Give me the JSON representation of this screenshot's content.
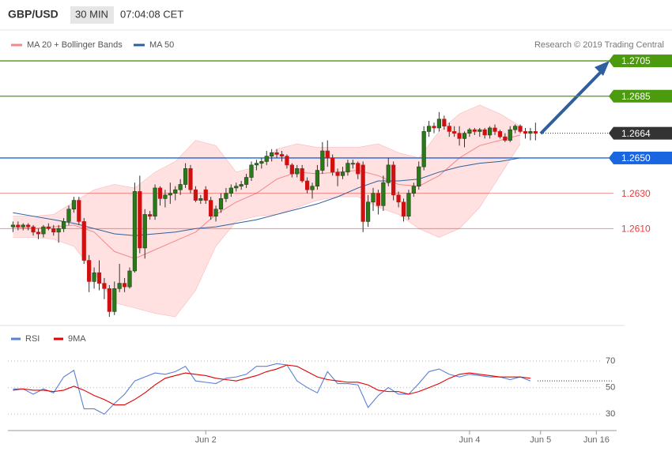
{
  "header": {
    "symbol": "GBP/USD",
    "timeframe": "30 MIN",
    "time": "07:04:08 CET"
  },
  "chart_data": [
    {
      "type": "candlestick",
      "credit": "Research © 2019 Trading Central",
      "open": [
        1.2611,
        1.2612,
        1.2611,
        1.2612,
        1.2611,
        1.2608,
        1.2607,
        1.2611,
        1.261,
        1.2608,
        1.261,
        1.2614,
        1.2621,
        1.2626,
        1.2614,
        1.2592,
        1.258,
        1.2585,
        1.2579,
        1.2576,
        1.2563,
        1.2576,
        1.2579,
        1.2577,
        1.2586,
        1.2631,
        1.2599,
        1.2618,
        1.2617,
        1.2633,
        1.2627,
        1.2629,
        1.263,
        1.2632,
        1.2635,
        1.2644,
        1.2632,
        1.2626,
        1.2632,
        1.2626,
        1.2617,
        1.2621,
        1.2627,
        1.263,
        1.2633,
        1.2634,
        1.2635,
        1.2639,
        1.2646,
        1.2647,
        1.2648,
        1.2651,
        1.2653,
        1.2652,
        1.2651,
        1.2646,
        1.2641,
        1.2644,
        1.2637,
        1.2632,
        1.2634,
        1.2643,
        1.2654,
        1.265,
        1.2642,
        1.264,
        1.2642,
        1.2647,
        1.2647,
        1.2646,
        1.2614,
        1.2625,
        1.263,
        1.2623,
        1.2636,
        1.2646,
        1.2629,
        1.2625,
        1.2617,
        1.263,
        1.2634,
        1.2645,
        1.2665,
        1.2668,
        1.2667,
        1.2672,
        1.2668,
        1.2665,
        1.2664,
        1.2661,
        1.2664,
        1.2666,
        1.2665,
        1.2666,
        1.2663,
        1.2667,
        1.2665,
        1.2662,
        1.266,
        1.2666,
        1.2668,
        1.2665,
        1.2664,
        1.2665
      ],
      "high": [
        1.2614,
        1.2614,
        1.2613,
        1.2613,
        1.2612,
        1.261,
        1.2612,
        1.2613,
        1.2612,
        1.2612,
        1.2616,
        1.2623,
        1.2628,
        1.2628,
        1.2616,
        1.2595,
        1.2588,
        1.2592,
        1.2582,
        1.2578,
        1.258,
        1.259,
        1.2582,
        1.2588,
        1.2636,
        1.264,
        1.2621,
        1.262,
        1.2635,
        1.2634,
        1.2632,
        1.2636,
        1.2634,
        1.2638,
        1.2647,
        1.2646,
        1.2634,
        1.2629,
        1.2634,
        1.2628,
        1.2623,
        1.263,
        1.2633,
        1.2635,
        1.2636,
        1.2637,
        1.2641,
        1.2648,
        1.2649,
        1.265,
        1.2654,
        1.2655,
        1.2655,
        1.2654,
        1.2652,
        1.2647,
        1.2646,
        1.2646,
        1.2639,
        1.2636,
        1.2646,
        1.2659,
        1.266,
        1.2652,
        1.2644,
        1.2645,
        1.2649,
        1.2649,
        1.2648,
        1.2648,
        1.2629,
        1.2633,
        1.2632,
        1.264,
        1.265,
        1.2648,
        1.2631,
        1.2627,
        1.2632,
        1.2636,
        1.2648,
        1.2668,
        1.2671,
        1.267,
        1.2676,
        1.2674,
        1.267,
        1.2668,
        1.2668,
        1.2665,
        1.2667,
        1.2667,
        1.2667,
        1.2667,
        1.2668,
        1.2669,
        1.2666,
        1.2664,
        1.2668,
        1.2669,
        1.2669,
        1.2667,
        1.2667,
        1.267
      ],
      "low": [
        1.2608,
        1.2609,
        1.2609,
        1.2609,
        1.2606,
        1.2604,
        1.2605,
        1.2609,
        1.2606,
        1.2602,
        1.2608,
        1.2612,
        1.2619,
        1.2612,
        1.259,
        1.2574,
        1.2576,
        1.2575,
        1.257,
        1.256,
        1.2561,
        1.2574,
        1.2574,
        1.2576,
        1.2585,
        1.2596,
        1.2593,
        1.2615,
        1.2615,
        1.2623,
        1.2622,
        1.2624,
        1.2626,
        1.2629,
        1.2633,
        1.263,
        1.2625,
        1.2624,
        1.2624,
        1.2615,
        1.2614,
        1.2619,
        1.2625,
        1.2628,
        1.2631,
        1.2632,
        1.2633,
        1.2637,
        1.2643,
        1.2644,
        1.2646,
        1.2648,
        1.265,
        1.2648,
        1.2644,
        1.2639,
        1.2639,
        1.2636,
        1.263,
        1.2627,
        1.2632,
        1.2641,
        1.2645,
        1.264,
        1.2634,
        1.2638,
        1.264,
        1.2644,
        1.2638,
        1.2608,
        1.2611,
        1.262,
        1.2618,
        1.262,
        1.2634,
        1.2626,
        1.2622,
        1.2614,
        1.2615,
        1.2628,
        1.2632,
        1.2643,
        1.2662,
        1.2664,
        1.2665,
        1.2666,
        1.2662,
        1.2662,
        1.2657,
        1.2656,
        1.2662,
        1.2663,
        1.2662,
        1.2661,
        1.2661,
        1.2663,
        1.2661,
        1.2659,
        1.2659,
        1.2664,
        1.2664,
        1.2661,
        1.266,
        1.266
      ],
      "close": [
        1.2612,
        1.2611,
        1.2612,
        1.2611,
        1.2608,
        1.2607,
        1.2611,
        1.261,
        1.2608,
        1.261,
        1.2614,
        1.2621,
        1.2626,
        1.2614,
        1.2592,
        1.258,
        1.2585,
        1.2579,
        1.2576,
        1.2563,
        1.2576,
        1.2579,
        1.2577,
        1.2586,
        1.2631,
        1.2599,
        1.2618,
        1.2617,
        1.2633,
        1.2627,
        1.2629,
        1.263,
        1.2632,
        1.2635,
        1.2644,
        1.2632,
        1.2626,
        1.2627,
        1.2626,
        1.2617,
        1.2621,
        1.2627,
        1.263,
        1.2633,
        1.2634,
        1.2635,
        1.2639,
        1.2646,
        1.2647,
        1.2648,
        1.2651,
        1.2653,
        1.2652,
        1.2651,
        1.2646,
        1.2641,
        1.2644,
        1.2637,
        1.2632,
        1.2634,
        1.2643,
        1.2654,
        1.265,
        1.2642,
        1.264,
        1.2642,
        1.2647,
        1.2647,
        1.2641,
        1.2614,
        1.2625,
        1.263,
        1.2623,
        1.2636,
        1.2646,
        1.2629,
        1.2625,
        1.2617,
        1.263,
        1.2634,
        1.2645,
        1.2665,
        1.2668,
        1.2667,
        1.2672,
        1.2668,
        1.2665,
        1.2664,
        1.2661,
        1.2664,
        1.2666,
        1.2665,
        1.2666,
        1.2663,
        1.2667,
        1.2665,
        1.2662,
        1.266,
        1.2666,
        1.2668,
        1.2665,
        1.2664,
        1.2665,
        1.2664
      ],
      "up_color": "#2a7a1a",
      "down_color": "#d01010",
      "wick_color": "#333333",
      "step": 4,
      "series": [
        {
          "name": "MA 20 + Bollinger Bands",
          "color": "#f08a8a",
          "band_color": "#ffe1e1",
          "values": [
            1.2611,
            1.261,
            1.2611,
            1.2612,
            1.2608,
            1.2597,
            1.2593,
            1.2598,
            1.2603,
            1.2608,
            1.2618,
            1.2625,
            1.263,
            1.2638,
            1.2642,
            1.2641,
            1.2642,
            1.2643,
            1.264,
            1.2635,
            1.2634,
            1.264,
            1.265,
            1.2657,
            1.266,
            1.2663
          ],
          "upper": [
            1.2617,
            1.2617,
            1.2618,
            1.2625,
            1.2632,
            1.2635,
            1.2633,
            1.2642,
            1.2648,
            1.266,
            1.2657,
            1.2642,
            1.2645,
            1.2655,
            1.2658,
            1.2656,
            1.2656,
            1.2656,
            1.2658,
            1.2653,
            1.265,
            1.2665,
            1.2675,
            1.268,
            1.2675,
            1.2668
          ],
          "lower": [
            1.2605,
            1.2605,
            1.2604,
            1.26,
            1.2585,
            1.2568,
            1.2565,
            1.2562,
            1.256,
            1.2575,
            1.26,
            1.2614,
            1.2617,
            1.2618,
            1.2622,
            1.2626,
            1.2628,
            1.2628,
            1.2622,
            1.2618,
            1.261,
            1.2605,
            1.261,
            1.2622,
            1.264,
            1.2658
          ]
        },
        {
          "name": "MA 50",
          "color": "#2f5f9e",
          "values": [
            1.2619,
            1.2617,
            1.2615,
            1.2613,
            1.261,
            1.2607,
            1.2606,
            1.2607,
            1.2608,
            1.261,
            1.2611,
            1.2613,
            1.2615,
            1.2618,
            1.2621,
            1.2624,
            1.2628,
            1.2633,
            1.2637,
            1.2637,
            1.2638,
            1.2642,
            1.2645,
            1.2647,
            1.2648,
            1.265
          ]
        }
      ],
      "xlim": [
        -1,
        119
      ],
      "xticks": [
        {
          "value": 38,
          "label": "Jun 2"
        },
        {
          "value": 90,
          "label": "Jun 4"
        },
        {
          "value": 104,
          "label": "Jun 5"
        },
        {
          "value": 115,
          "label": "Jun 16"
        }
      ],
      "ylim": [
        1.2556,
        1.2735
      ],
      "yticks": [
        1.2705,
        1.2685,
        1.2664,
        {
          "value": 1.265,
          "label": "1.2650"
        },
        {
          "value": 1.263,
          "label": "1.2630"
        },
        {
          "value": 1.261,
          "label": "1.2610"
        }
      ],
      "ytick_colors": [
        "#4c9a0e",
        "#4c9a0e",
        "#333333",
        "#1a66e0",
        "#e83a3a",
        "#e83a3a"
      ],
      "ytick_styles": [
        "box",
        "box",
        "box",
        "box",
        "text",
        "text"
      ],
      "ytick_lines": [
        "solid",
        "solid",
        "dotted",
        "solid",
        "solid",
        "solid"
      ]
    },
    {
      "type": "line",
      "step": 2,
      "series": [
        {
          "name": "RSI",
          "color": "#5b7fd6",
          "values": [
            49,
            49,
            45,
            49,
            46,
            58,
            63,
            34,
            34,
            30,
            38,
            45,
            55,
            58,
            61,
            60,
            62,
            66,
            55,
            54,
            53,
            57,
            58,
            60,
            66,
            66,
            68,
            67,
            55,
            50,
            46,
            62,
            53,
            53,
            52,
            35,
            44,
            50,
            45,
            45,
            53,
            62,
            64,
            60,
            58,
            60,
            59,
            58,
            58,
            56,
            58,
            55
          ]
        },
        {
          "name": "9MA",
          "color": "#e00000",
          "values": [
            48,
            49,
            48,
            48,
            47,
            48,
            51,
            48,
            44,
            41,
            37,
            37,
            41,
            46,
            52,
            57,
            59,
            61,
            60,
            59,
            57,
            56,
            55,
            57,
            59,
            62,
            64,
            67,
            66,
            62,
            58,
            56,
            55,
            54,
            54,
            52,
            48,
            47,
            47,
            45,
            47,
            50,
            53,
            57,
            60,
            61,
            60,
            59,
            58,
            58,
            58,
            57
          ]
        }
      ],
      "ylim": [
        20,
        92
      ],
      "yticks": [
        30,
        50,
        70
      ],
      "grid": true,
      "yref": 55
    }
  ]
}
